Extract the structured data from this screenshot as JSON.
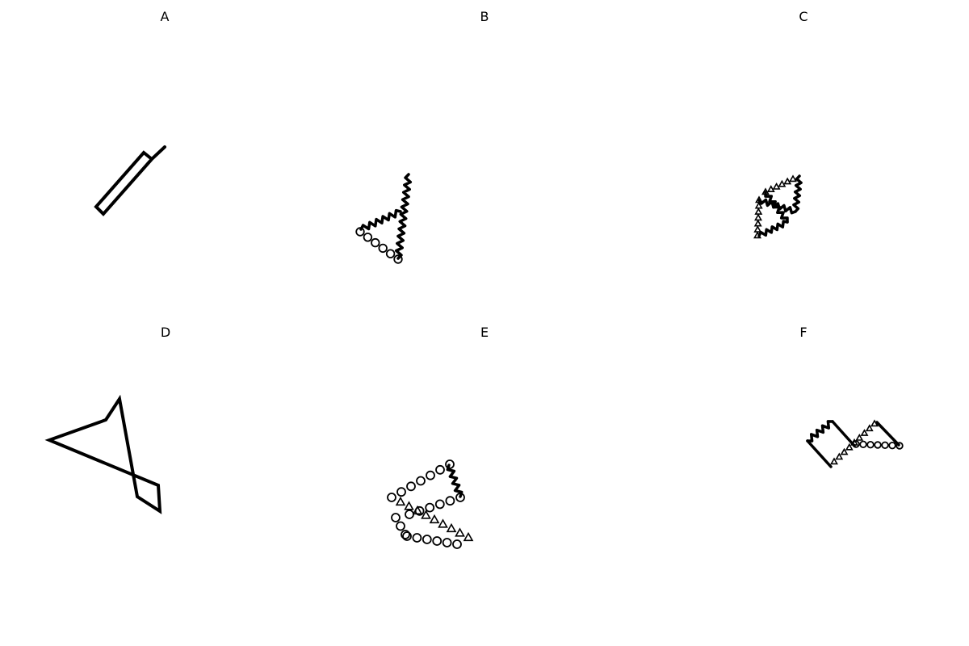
{
  "panels": [
    {
      "id": "A",
      "label": "A"
    },
    {
      "id": "B",
      "label": "B"
    },
    {
      "id": "C",
      "label": "C"
    },
    {
      "id": "D",
      "label": "D"
    },
    {
      "id": "E",
      "label": "E"
    },
    {
      "id": "F",
      "label": "F"
    }
  ],
  "colors": {
    "stroke": "#000000",
    "background": "#ffffff"
  },
  "line_styles": [
    "solid",
    "zigzag",
    "circle-markers",
    "triangle-markers"
  ]
}
